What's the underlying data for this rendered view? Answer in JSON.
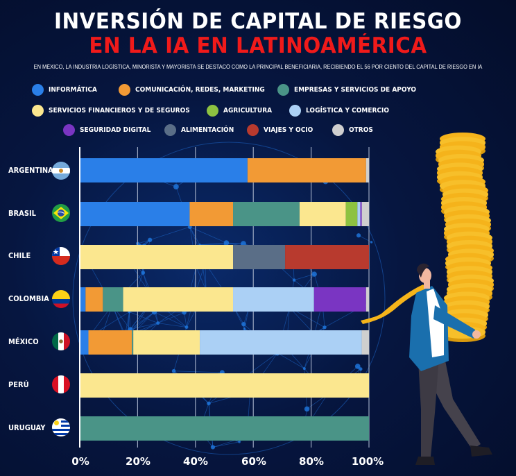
{
  "header": {
    "title_line1": "INVERSIÓN DE CAPITAL DE RIESGO",
    "title_line2": "EN LA IA EN LATINOAMÉRICA",
    "subtitle": "EN MÉXICO, LA INDUSTRIA LOGÍSTICA, MINORISTA Y MAYORISTA SE DESTACÓ COMO LA PRINCIPAL BENEFICIARIA, RECIBIENDO EL 56 POR CIENTO DEL CAPITAL DE RIESGO EN IA"
  },
  "legend": [
    {
      "label": "INFORMÁTICA",
      "color": "#2a7fe8"
    },
    {
      "label": "COMUNICACIÓN, REDES, MARKETING",
      "color": "#f29a35"
    },
    {
      "label": "EMPRESAS Y SERVICIOS DE APOYO",
      "color": "#4a9487"
    },
    {
      "label": "SERVICIOS FINANCIEROS Y DE SEGUROS",
      "color": "#fbe78f"
    },
    {
      "label": "AGRICULTURA",
      "color": "#8dc241"
    },
    {
      "label": "LOGÍSTICA Y COMERCIO",
      "color": "#abd0f5"
    },
    {
      "label": "SEGURIDAD DIGITAL",
      "color": "#7a35c2"
    },
    {
      "label": "ALIMENTACIÓN",
      "color": "#5a6e87"
    },
    {
      "label": "VIAJES Y OCIO",
      "color": "#b83a2e"
    },
    {
      "label": "OTROS",
      "color": "#cfcfcf"
    }
  ],
  "flags": {
    "argentina": "flag-argentina",
    "brasil": "flag-brasil",
    "chile": "flag-chile",
    "colombia": "flag-colombia",
    "mexico": "flag-mexico",
    "peru": "flag-peru",
    "uruguay": "flag-uruguay"
  },
  "illustration": "businessman-carrying-coin-stack",
  "chart_data": {
    "type": "bar",
    "orientation": "horizontal",
    "stacked": true,
    "title": "INVERSIÓN DE CAPITAL DE RIESGO EN LA IA EN LATINOAMÉRICA",
    "xlabel": "",
    "ylabel": "",
    "xlim": [
      0,
      100
    ],
    "grid": true,
    "legend_position": "top",
    "x_ticks": [
      "0%",
      "20%",
      "40%",
      "60%",
      "80%",
      "100%"
    ],
    "categories": [
      "ARGENTINA",
      "BRASIL",
      "CHILE",
      "COLOMBIA",
      "MÉXICO",
      "PERÚ",
      "URUGUAY"
    ],
    "series": [
      {
        "name": "INFORMÁTICA",
        "color": "#2a7fe8",
        "values": [
          58,
          38,
          0,
          2,
          3,
          0,
          0
        ]
      },
      {
        "name": "COMUNICACIÓN, REDES, MARKETING",
        "color": "#f29a35",
        "values": [
          41,
          15,
          0,
          6,
          15,
          0,
          0
        ]
      },
      {
        "name": "EMPRESAS Y SERVICIOS DE APOYO",
        "color": "#4a9487",
        "values": [
          0,
          23,
          0,
          7,
          0.5,
          0,
          100
        ]
      },
      {
        "name": "SERVICIOS FINANCIEROS Y DE SEGUROS",
        "color": "#fbe78f",
        "values": [
          0,
          16,
          53,
          38,
          23,
          100,
          0
        ]
      },
      {
        "name": "AGRICULTURA",
        "color": "#8dc241",
        "values": [
          0,
          4,
          0,
          0,
          0,
          0,
          0
        ]
      },
      {
        "name": "LOGÍSTICA Y COMERCIO",
        "color": "#abd0f5",
        "values": [
          0,
          1,
          0,
          28,
          56,
          0,
          0
        ]
      },
      {
        "name": "SEGURIDAD DIGITAL",
        "color": "#7a35c2",
        "values": [
          0,
          0.5,
          0,
          18,
          0,
          0,
          0
        ]
      },
      {
        "name": "ALIMENTACIÓN",
        "color": "#5a6e87",
        "values": [
          0,
          0,
          18,
          0,
          0,
          0,
          0
        ]
      },
      {
        "name": "VIAJES Y OCIO",
        "color": "#b83a2e",
        "values": [
          0,
          0,
          29,
          0,
          0,
          0,
          0
        ]
      },
      {
        "name": "OTROS",
        "color": "#cfcfcf",
        "values": [
          1,
          2.5,
          0,
          1,
          2.5,
          0,
          0
        ]
      }
    ]
  }
}
